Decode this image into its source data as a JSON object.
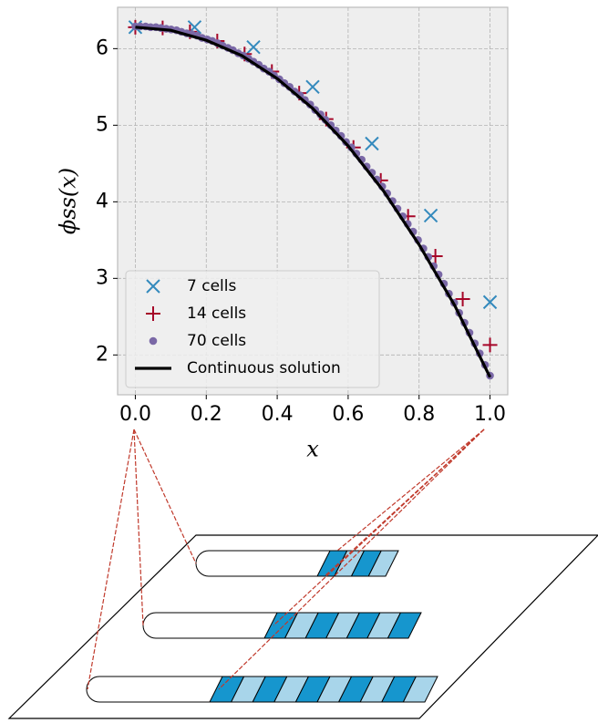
{
  "chart_data": {
    "type": "scatter",
    "xlabel": "x",
    "ylabel": "ϕss(x)",
    "xlim": [
      -0.05,
      1.05
    ],
    "ylim": [
      1.48,
      6.54
    ],
    "xticks": [
      {
        "value": 0,
        "label": "0.0"
      },
      {
        "value": 0.2,
        "label": "0.2"
      },
      {
        "value": 0.4,
        "label": "0.4"
      },
      {
        "value": 0.6,
        "label": "0.6"
      },
      {
        "value": 0.8,
        "label": "0.8"
      },
      {
        "value": 1,
        "label": "1.0"
      }
    ],
    "yticks": [
      2,
      3,
      4,
      5,
      6
    ],
    "grid": true,
    "legend": "lower left",
    "background": "#eeeeee",
    "series": [
      {
        "name": "7 cells",
        "kind": "scatter",
        "marker": "x",
        "color": "#348ABD",
        "x": [
          0,
          0.167,
          0.333,
          0.5,
          0.667,
          0.833,
          1.0
        ],
        "values": [
          6.28,
          6.28,
          6.02,
          5.5,
          4.76,
          3.82,
          2.69
        ]
      },
      {
        "name": "14 cells",
        "kind": "scatter",
        "marker": "+",
        "color": "#A60628",
        "x": [
          0,
          0.077,
          0.154,
          0.231,
          0.308,
          0.385,
          0.462,
          0.538,
          0.615,
          0.692,
          0.769,
          0.846,
          0.923,
          1.0
        ],
        "values": [
          6.28,
          6.27,
          6.22,
          6.1,
          5.93,
          5.7,
          5.42,
          5.08,
          4.71,
          4.28,
          3.81,
          3.29,
          2.73,
          2.13
        ]
      },
      {
        "name": "70 cells",
        "kind": "scatter",
        "marker": "o",
        "color": "#7A68A6",
        "x": [
          0,
          0.014,
          0.029,
          0.043,
          0.058,
          0.072,
          0.087,
          0.101,
          0.116,
          0.13,
          0.145,
          0.159,
          0.174,
          0.188,
          0.203,
          0.217,
          0.232,
          0.246,
          0.261,
          0.275,
          0.29,
          0.304,
          0.319,
          0.333,
          0.348,
          0.362,
          0.377,
          0.391,
          0.406,
          0.42,
          0.435,
          0.449,
          0.464,
          0.478,
          0.493,
          0.507,
          0.522,
          0.536,
          0.551,
          0.565,
          0.58,
          0.594,
          0.609,
          0.623,
          0.638,
          0.652,
          0.667,
          0.681,
          0.696,
          0.71,
          0.725,
          0.739,
          0.754,
          0.768,
          0.783,
          0.797,
          0.812,
          0.826,
          0.841,
          0.855,
          0.87,
          0.884,
          0.899,
          0.913,
          0.928,
          0.942,
          0.957,
          0.971,
          0.986,
          1.0
        ],
        "values": [
          6.29,
          6.29,
          6.29,
          6.28,
          6.28,
          6.27,
          6.26,
          6.25,
          6.24,
          6.22,
          6.2,
          6.19,
          6.17,
          6.14,
          6.12,
          6.1,
          6.07,
          6.04,
          6.01,
          5.98,
          5.94,
          5.91,
          5.87,
          5.83,
          5.79,
          5.74,
          5.7,
          5.65,
          5.6,
          5.55,
          5.5,
          5.44,
          5.39,
          5.33,
          5.27,
          5.2,
          5.14,
          5.07,
          5.0,
          4.93,
          4.86,
          4.78,
          4.71,
          4.63,
          4.55,
          4.46,
          4.38,
          4.29,
          4.2,
          4.11,
          4.01,
          3.91,
          3.81,
          3.71,
          3.61,
          3.5,
          3.39,
          3.28,
          3.16,
          3.05,
          2.93,
          2.8,
          2.68,
          2.55,
          2.42,
          2.29,
          2.15,
          2.02,
          1.87,
          1.73
        ]
      },
      {
        "name": "Continuous solution",
        "kind": "line",
        "color": "#000000",
        "x": [
          0,
          0.1,
          0.2,
          0.3,
          0.4,
          0.5,
          0.6,
          0.7,
          0.8,
          0.9,
          1.0
        ],
        "values": [
          6.28,
          6.24,
          6.11,
          5.91,
          5.61,
          5.22,
          4.73,
          4.14,
          3.44,
          2.65,
          1.71
        ]
      }
    ]
  }
}
